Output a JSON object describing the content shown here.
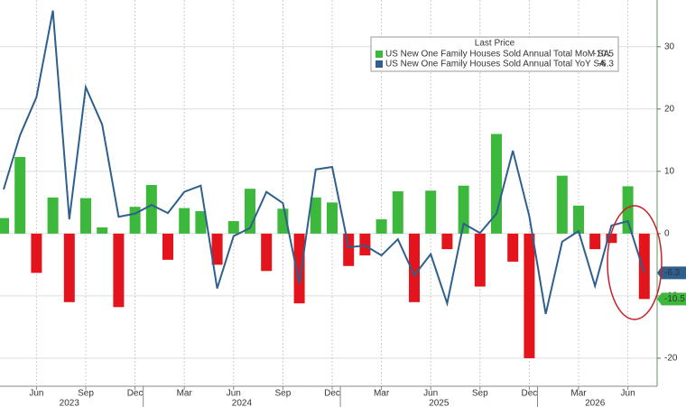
{
  "chart_data": {
    "type": "bar_line",
    "legend_title": "Last Price",
    "categories": [
      null,
      null,
      "Jun",
      null,
      null,
      "Sep",
      null,
      null,
      "Dec",
      null,
      null,
      "Mar",
      null,
      null,
      "Jun",
      null,
      null,
      "Sep",
      null,
      null,
      "Dec",
      null,
      null,
      "Mar",
      null,
      null,
      "Jun",
      null,
      null,
      "Sep",
      null,
      null,
      "Dec",
      null,
      null,
      "Mar",
      null,
      null,
      "Jun",
      null
    ],
    "years": [
      "2023",
      "2024",
      "2025",
      "2026"
    ],
    "series": [
      {
        "name": "US New One Family Houses Sold Annual Total MoM SA",
        "type": "bar",
        "color": "#3cb83c",
        "negative_color": "#e3141c",
        "values": [
          2.5,
          12.3,
          -6.3,
          5.8,
          -11,
          5.7,
          1.0,
          -11.8,
          4.3,
          7.8,
          -4.2,
          4.1,
          3.6,
          -5,
          2.0,
          7.2,
          -6,
          4.0,
          -11.2,
          5.8,
          5.0,
          -5.2,
          -3.5,
          2.3,
          6.8,
          -11,
          6.9,
          -2.5,
          7.7,
          -8.5,
          16.0,
          -4.5,
          -20,
          null,
          9.3,
          4.5,
          -2.5,
          -1.5,
          7.6,
          -10.5
        ]
      },
      {
        "name": "US New One Family Houses Sold Annual Total YoY SA",
        "type": "line",
        "color": "#2f5f8c",
        "values": [
          7.1,
          15.8,
          21.9,
          35.8,
          2.3,
          23.5,
          17.5,
          2.7,
          3.2,
          4.6,
          3.3,
          6.7,
          7.7,
          -8.8,
          -0.4,
          0.9,
          6.7,
          4.9,
          -8.0,
          10.3,
          10.7,
          -2.2,
          -1.9,
          -3.5,
          -0.9,
          -6.7,
          -3.3,
          -11.2,
          1.6,
          0.1,
          3.2,
          13.3,
          2.8,
          -12.9,
          -1.3,
          0.4,
          -8.4,
          1.3,
          2.0,
          -6.3
        ]
      }
    ],
    "ylim": [
      -24.5,
      37.5
    ],
    "yticks": [
      30,
      20,
      10,
      0,
      -10,
      -20
    ],
    "grid": true
  }
}
